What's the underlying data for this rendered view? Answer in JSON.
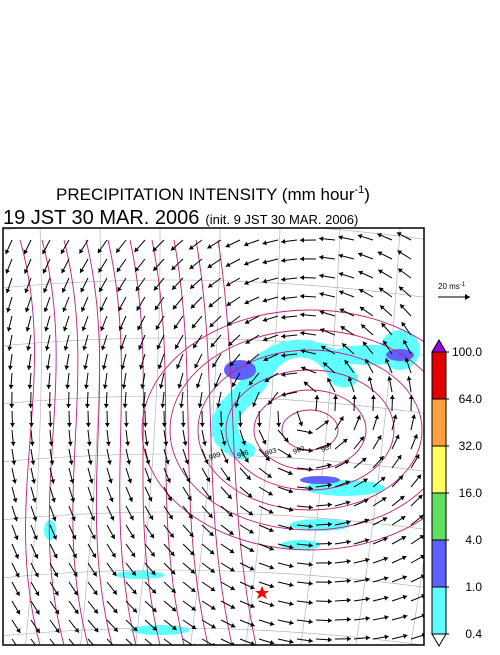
{
  "title": {
    "main": "PRECIPITATION INTENSITY (mm hour",
    "exponent": "-1",
    "close": ")"
  },
  "valid_time": "19 JST 30 MAR. 2006",
  "init_time": "(init. 9 JST 30 MAR. 2006)",
  "wind_scale": {
    "label": "20 ms",
    "exponent": "-1"
  },
  "contour_labels": [
    "999",
    "996",
    "993",
    "990",
    "987"
  ],
  "colorbar": {
    "levels": [
      {
        "value": 100,
        "label": "100.0"
      },
      {
        "value": 64,
        "label": "64.0"
      },
      {
        "value": 32,
        "label": "32.0"
      },
      {
        "value": 16,
        "label": "16.0"
      },
      {
        "value": 4,
        "label": "4.0"
      },
      {
        "value": 1,
        "label": "1.0"
      },
      {
        "value": 0.4,
        "label": "0.4"
      }
    ],
    "colors": [
      "#e00000",
      "#ffa040",
      "#ffff60",
      "#60e060",
      "#6060ff",
      "#60ffff"
    ],
    "over_color": "#a000e0",
    "under_color": "#ffffff"
  }
}
